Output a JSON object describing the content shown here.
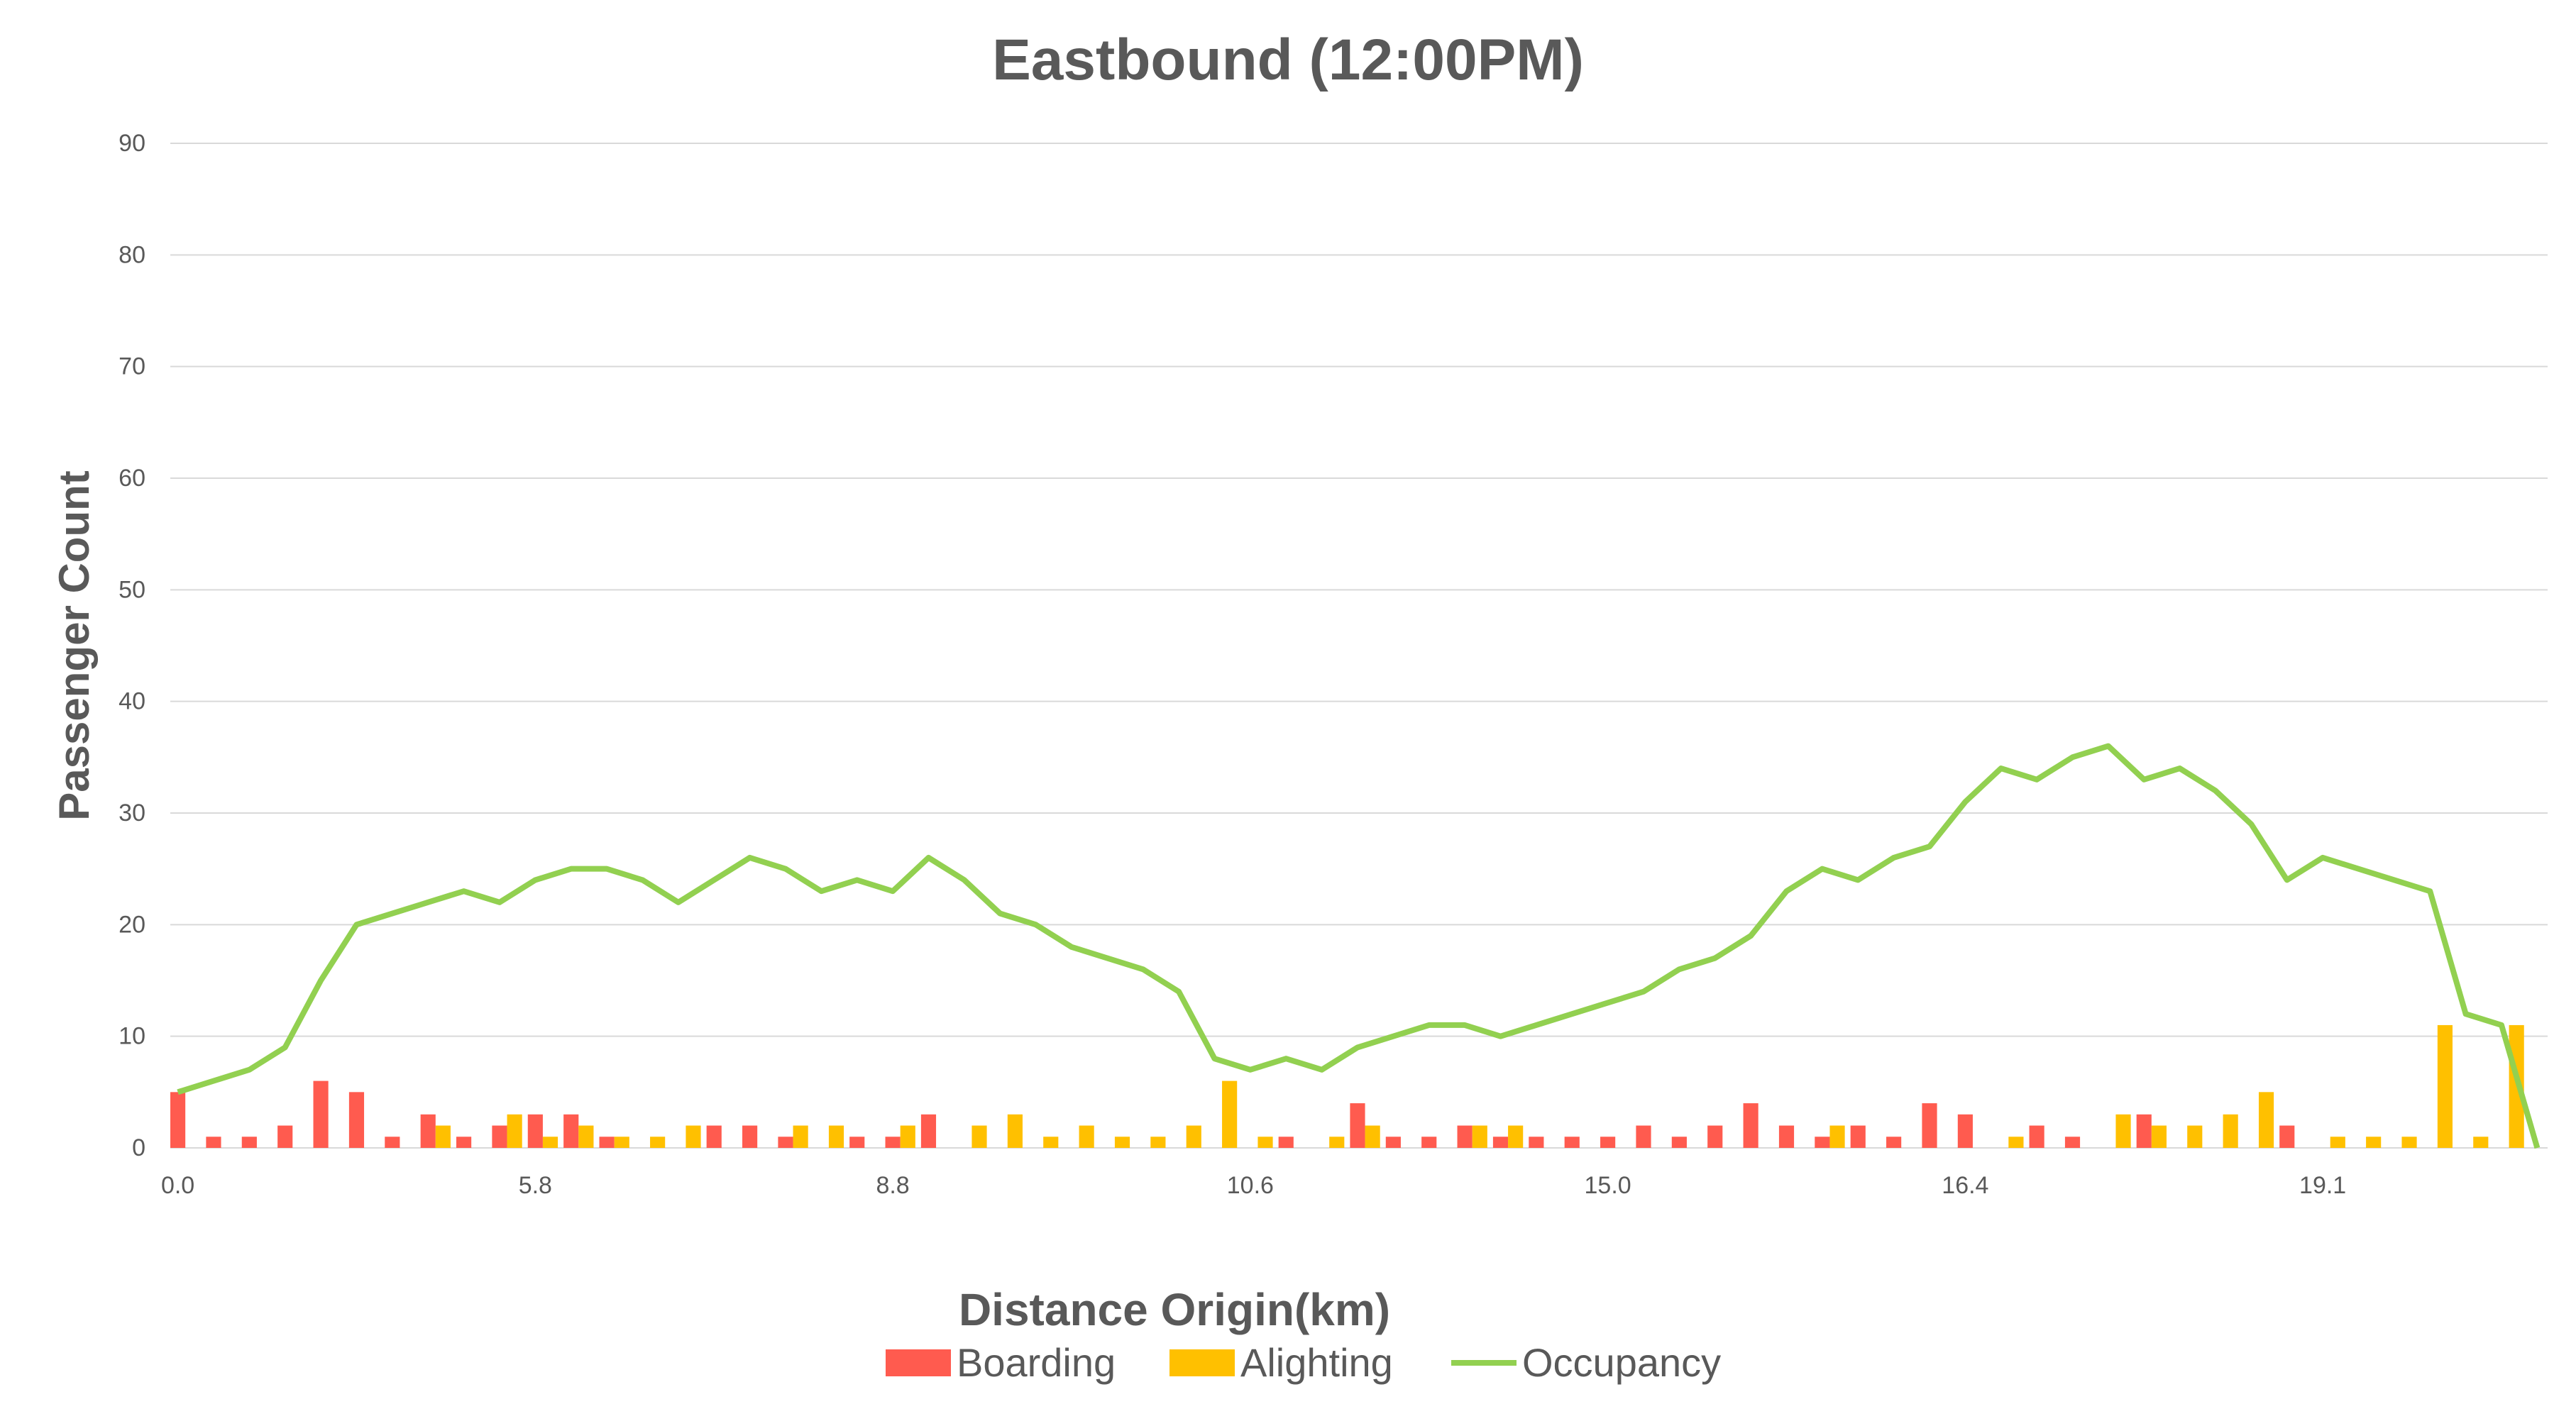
{
  "chart_data": {
    "type": "bar",
    "title": "Eastbound (12:00PM)",
    "xlabel": "Distance Origin(km)",
    "ylabel": "Passenger Count",
    "ylim": [
      0,
      90
    ],
    "yticks": [
      0,
      10,
      20,
      30,
      40,
      50,
      60,
      70,
      80,
      90
    ],
    "xtick_labels": [
      "0.0",
      "5.8",
      "8.8",
      "10.6",
      "15.0",
      "16.4",
      "19.1"
    ],
    "xtick_positions": [
      0,
      10,
      20,
      30,
      40,
      50,
      60
    ],
    "grid": true,
    "legend_position": "bottom",
    "n_stops": 67,
    "series": [
      {
        "name": "Boarding",
        "type": "bar",
        "color": "#FF5B4F",
        "values": [
          5,
          1,
          1,
          2,
          6,
          5,
          1,
          3,
          1,
          2,
          3,
          3,
          1,
          0,
          0,
          2,
          2,
          1,
          0,
          1,
          1,
          3,
          0,
          0,
          0,
          0,
          0,
          0,
          0,
          0,
          0,
          1,
          0,
          4,
          1,
          1,
          2,
          1,
          1,
          1,
          1,
          2,
          1,
          2,
          4,
          2,
          1,
          2,
          1,
          4,
          3,
          0,
          2,
          1,
          0,
          3,
          0,
          0,
          0,
          2,
          0,
          0,
          0,
          0,
          0,
          0,
          0
        ]
      },
      {
        "name": "Alighting",
        "type": "bar",
        "color": "#FFC000",
        "values": [
          0,
          0,
          0,
          0,
          0,
          0,
          0,
          2,
          0,
          3,
          1,
          2,
          1,
          1,
          2,
          0,
          0,
          2,
          2,
          0,
          2,
          0,
          2,
          3,
          1,
          2,
          1,
          1,
          2,
          6,
          1,
          0,
          1,
          2,
          0,
          0,
          2,
          2,
          0,
          0,
          0,
          0,
          0,
          0,
          0,
          0,
          2,
          0,
          0,
          0,
          0,
          1,
          0,
          0,
          3,
          2,
          2,
          3,
          5,
          0,
          1,
          1,
          1,
          11,
          1,
          11,
          0
        ]
      },
      {
        "name": "Occupancy",
        "type": "line",
        "color": "#92D050",
        "values": [
          5,
          6,
          7,
          9,
          15,
          20,
          21,
          22,
          23,
          22,
          24,
          25,
          25,
          24,
          22,
          24,
          26,
          25,
          23,
          24,
          23,
          26,
          24,
          21,
          20,
          18,
          17,
          16,
          14,
          8,
          7,
          8,
          7,
          9,
          10,
          11,
          11,
          10,
          11,
          12,
          13,
          14,
          16,
          17,
          19,
          23,
          25,
          24,
          26,
          27,
          31,
          34,
          33,
          35,
          36,
          33,
          34,
          32,
          29,
          24,
          26,
          25,
          24,
          23,
          12,
          11,
          0
        ]
      }
    ]
  }
}
